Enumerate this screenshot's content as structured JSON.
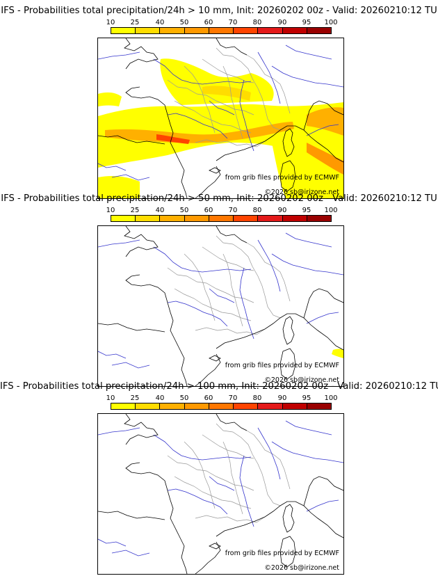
{
  "scale": {
    "labels": [
      "10",
      "25",
      "40",
      "50",
      "60",
      "70",
      "80",
      "90",
      "95",
      "100"
    ],
    "colors": [
      "#ffff00",
      "#ffdd00",
      "#ffb000",
      "#ff9900",
      "#ff7700",
      "#ff4400",
      "#e41a1a",
      "#c00000",
      "#990000",
      "#660000"
    ]
  },
  "colors": {
    "river": "#3333cc",
    "border": "#999999",
    "coast": "#000000"
  },
  "panels": [
    {
      "title": "IFS - Probabilities total precipitation/24h > 10 mm, Init: 20260202 00z - Valid: 20260210:12 TU",
      "source": "from grib files provided by ECMWF",
      "copyright": "©2026 sb@irizone.net",
      "fields": "heavy"
    },
    {
      "title": "IFS - Probabilities total precipitation/24h > 50 mm, Init: 20260202 00z - Valid: 20260210:12 TU",
      "source": "from grib files provided by ECMWF",
      "copyright": "©2026 sb@irizone.net",
      "fields": "light"
    },
    {
      "title": "IFS - Probabilities total precipitation/24h > 100 mm, Init: 20260202 00z - Valid: 20260210:12 TU",
      "source": "from grib files provided by ECMWF",
      "copyright": "©2026 sb@irizone.net",
      "fields": "none"
    }
  ]
}
